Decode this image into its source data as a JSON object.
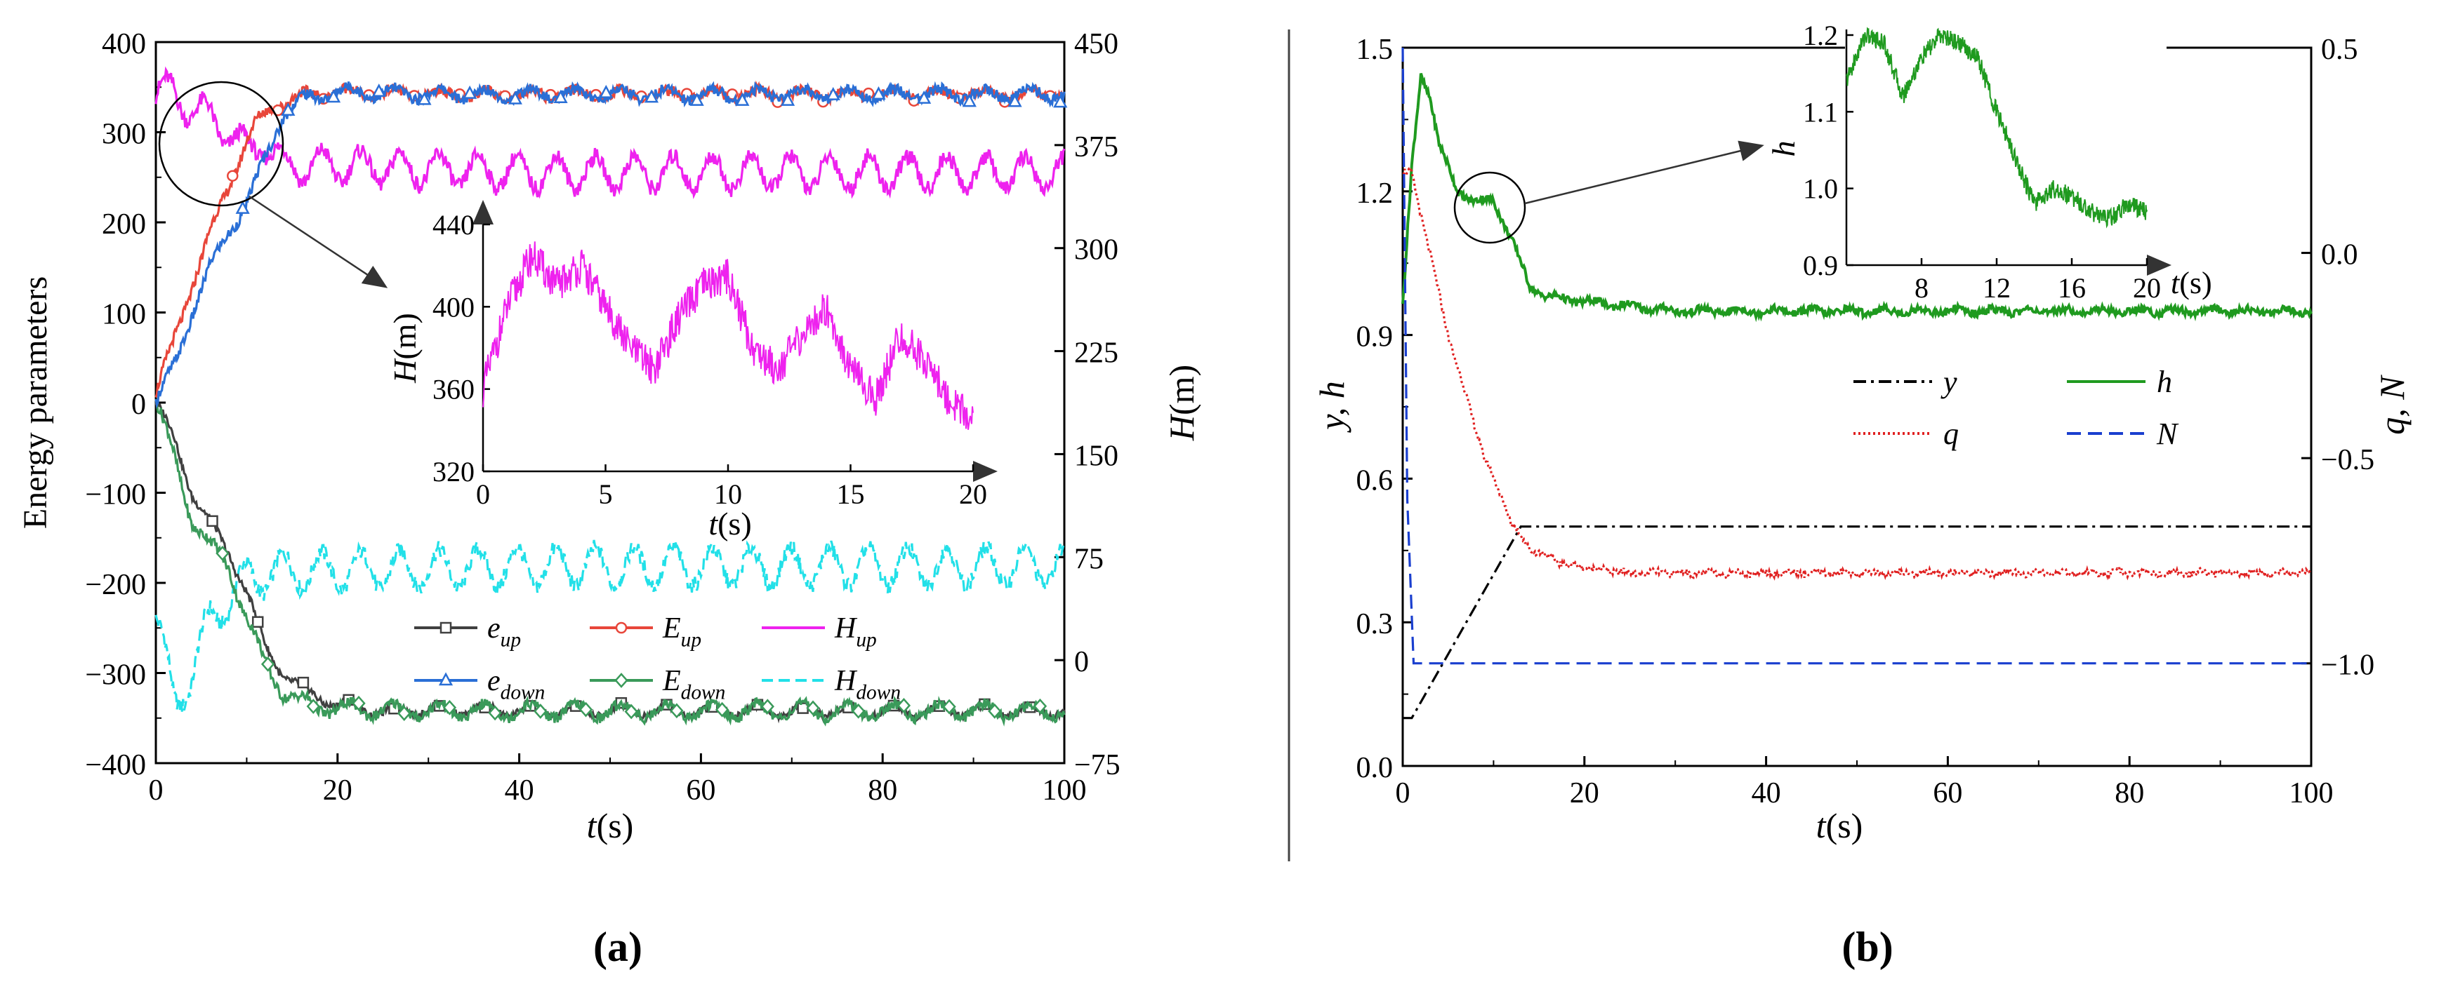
{
  "figure": {
    "panel_a_caption": "a",
    "panel_b_caption": "b"
  },
  "chart_data": [
    {
      "id": "a",
      "type": "line",
      "xlabel": "t(s)",
      "ylabel_left": "Energy parameters",
      "ylabel_right": "H(m)",
      "xlim": [
        0,
        100
      ],
      "ylim_left": [
        -400,
        400
      ],
      "ylim_right": [
        -75,
        450
      ],
      "xticks": [
        0,
        20,
        40,
        60,
        80,
        100
      ],
      "yticks_left": [
        400,
        300,
        200,
        100,
        0,
        -100,
        -200,
        -300,
        -400
      ],
      "yticks_right": [
        450,
        375,
        300,
        225,
        150,
        75,
        0,
        -75
      ],
      "legend": [
        {
          "sym": "e",
          "sub": "up",
          "color": "#404040",
          "marker": "square"
        },
        {
          "sym": "E",
          "sub": "up",
          "color": "#e8463a",
          "marker": "circle"
        },
        {
          "sym": "H",
          "sub": "up",
          "color": "#ee22ee",
          "marker": "none"
        },
        {
          "sym": "e",
          "sub": "down",
          "color": "#2a6fd6",
          "marker": "triangle"
        },
        {
          "sym": "E",
          "sub": "down",
          "color": "#3a9a5a",
          "marker": "diamond"
        },
        {
          "sym": "H",
          "sub": "down",
          "color": "#22e0e8",
          "marker": "dash"
        }
      ],
      "series": [
        {
          "name": "e_up",
          "axis": "left",
          "color": "#404040",
          "points": [
            [
              0,
              0
            ],
            [
              2,
              -40
            ],
            [
              4,
              -100
            ],
            [
              6,
              -135
            ],
            [
              8,
              -165
            ],
            [
              10,
              -210
            ],
            [
              12,
              -270
            ],
            [
              14,
              -300
            ],
            [
              16,
              -318
            ],
            [
              20,
              -335
            ],
            [
              25,
              -343
            ],
            [
              30,
              -340
            ],
            [
              40,
              -342
            ],
            [
              60,
              -342
            ],
            [
              80,
              -342
            ],
            [
              100,
              -342
            ]
          ]
        },
        {
          "name": "E_up",
          "axis": "left",
          "color": "#e8463a",
          "points": [
            [
              0,
              10
            ],
            [
              2,
              70
            ],
            [
              4,
              130
            ],
            [
              6,
              190
            ],
            [
              8,
              240
            ],
            [
              10,
              290
            ],
            [
              11,
              310
            ],
            [
              13,
              330
            ],
            [
              16,
              340
            ],
            [
              20,
              345
            ],
            [
              30,
              342
            ],
            [
              60,
              342
            ],
            [
              80,
              342
            ],
            [
              100,
              342
            ]
          ]
        },
        {
          "name": "e_down",
          "axis": "left",
          "color": "#2a6fd6",
          "points": [
            [
              0,
              0
            ],
            [
              2,
              40
            ],
            [
              4,
              100
            ],
            [
              6,
              150
            ],
            [
              8,
              190
            ],
            [
              10,
              220
            ],
            [
              12,
              270
            ],
            [
              14,
              320
            ],
            [
              16,
              336
            ],
            [
              20,
              345
            ],
            [
              30,
              342
            ],
            [
              60,
              342
            ],
            [
              80,
              342
            ],
            [
              100,
              342
            ]
          ]
        },
        {
          "name": "E_down",
          "axis": "left",
          "color": "#3a9a5a",
          "points": [
            [
              0,
              0
            ],
            [
              2,
              -60
            ],
            [
              4,
              -130
            ],
            [
              6,
              -160
            ],
            [
              8,
              -180
            ],
            [
              10,
              -240
            ],
            [
              12,
              -290
            ],
            [
              14,
              -320
            ],
            [
              16,
              -333
            ],
            [
              20,
              -340
            ],
            [
              30,
              -342
            ],
            [
              60,
              -342
            ],
            [
              80,
              -342
            ],
            [
              100,
              -342
            ]
          ]
        },
        {
          "name": "H_up",
          "axis": "right",
          "color": "#ee22ee",
          "points": [
            [
              0,
              410
            ],
            [
              2,
              415
            ],
            [
              4,
              400
            ],
            [
              6,
              395
            ],
            [
              8,
              385
            ],
            [
              10,
              370
            ],
            [
              12,
              378
            ],
            [
              14,
              360
            ],
            [
              20,
              360
            ],
            [
              40,
              355
            ],
            [
              60,
              355
            ],
            [
              80,
              355
            ],
            [
              100,
              355
            ]
          ]
        },
        {
          "name": "H_down",
          "axis": "right",
          "color": "#22e0e8",
          "points": [
            [
              0,
              30
            ],
            [
              2,
              -30
            ],
            [
              4,
              -10
            ],
            [
              6,
              30
            ],
            [
              8,
              45
            ],
            [
              10,
              60
            ],
            [
              14,
              65
            ],
            [
              20,
              65
            ],
            [
              40,
              68
            ],
            [
              60,
              68
            ],
            [
              80,
              68
            ],
            [
              100,
              68
            ]
          ]
        }
      ],
      "inset": {
        "xlabel": "t(s)",
        "ylabel": "H(m)",
        "xlim": [
          0,
          20
        ],
        "ylim": [
          320,
          440
        ],
        "xticks": [
          0,
          5,
          10,
          15,
          20
        ],
        "yticks": [
          320,
          360,
          400,
          440
        ],
        "series": [
          {
            "name": "H_up_zoom",
            "color": "#ee22ee",
            "points": [
              [
                0,
                360
              ],
              [
                1,
                400
              ],
              [
                2,
                425
              ],
              [
                3,
                410
              ],
              [
                4,
                420
              ],
              [
                5,
                400
              ],
              [
                6,
                380
              ],
              [
                7,
                370
              ],
              [
                8,
                395
              ],
              [
                9,
                410
              ],
              [
                10,
                415
              ],
              [
                11,
                380
              ],
              [
                12,
                370
              ],
              [
                13,
                385
              ],
              [
                14,
                400
              ],
              [
                15,
                370
              ],
              [
                16,
                355
              ],
              [
                17,
                385
              ],
              [
                18,
                375
              ],
              [
                19,
                355
              ],
              [
                20,
                345
              ]
            ]
          }
        ]
      }
    },
    {
      "id": "b",
      "type": "line",
      "xlabel": "t(s)",
      "ylabel_left": "y, h",
      "ylabel_right": "q, N",
      "xlim": [
        0,
        100
      ],
      "ylim_left": [
        0.0,
        1.5
      ],
      "ylim_right": [
        -1.25,
        0.5
      ],
      "xticks": [
        0,
        20,
        40,
        60,
        80,
        100
      ],
      "yticks_left": [
        1.5,
        1.2,
        0.9,
        0.6,
        0.3,
        0.0
      ],
      "yticks_right": [
        0.5,
        0.0,
        -0.5,
        -1.0
      ],
      "ytick_labels_right": [
        "0.5",
        "0.0",
        "−0.5",
        "−1.0"
      ],
      "legend": [
        {
          "sym": "y",
          "color": "#000000",
          "style": "dashdot"
        },
        {
          "sym": "h",
          "color": "#1f9a1f",
          "style": "solid"
        },
        {
          "sym": "q",
          "color": "#e02020",
          "style": "dotted"
        },
        {
          "sym": "N",
          "color": "#1a3fcf",
          "style": "dashed"
        }
      ],
      "series": [
        {
          "name": "y",
          "axis": "left",
          "color": "#000000",
          "points": [
            [
              0,
              0.1
            ],
            [
              1,
              0.1
            ],
            [
              13,
              0.5
            ],
            [
              100,
              0.5
            ]
          ]
        },
        {
          "name": "h",
          "axis": "left",
          "color": "#1f9a1f",
          "points": [
            [
              0,
              0.96
            ],
            [
              1,
              1.25
            ],
            [
              2,
              1.44
            ],
            [
              3,
              1.4
            ],
            [
              4,
              1.3
            ],
            [
              6,
              1.2
            ],
            [
              8,
              1.18
            ],
            [
              10,
              1.18
            ],
            [
              12,
              1.1
            ],
            [
              14,
              1.0
            ],
            [
              16,
              0.98
            ],
            [
              20,
              0.97
            ],
            [
              30,
              0.95
            ],
            [
              50,
              0.95
            ],
            [
              80,
              0.95
            ],
            [
              100,
              0.95
            ]
          ]
        },
        {
          "name": "q",
          "axis": "right",
          "color": "#e02020",
          "points": [
            [
              0,
              0.2
            ],
            [
              1,
              0.19
            ],
            [
              3,
              0.0
            ],
            [
              5,
              -0.2
            ],
            [
              7,
              -0.35
            ],
            [
              9,
              -0.5
            ],
            [
              11,
              -0.6
            ],
            [
              12,
              -0.66
            ],
            [
              14,
              -0.72
            ],
            [
              18,
              -0.76
            ],
            [
              25,
              -0.78
            ],
            [
              40,
              -0.78
            ],
            [
              60,
              -0.78
            ],
            [
              80,
              -0.78
            ],
            [
              100,
              -0.78
            ]
          ]
        },
        {
          "name": "N",
          "axis": "right",
          "color": "#1a3fcf",
          "points": [
            [
              0,
              0.5
            ],
            [
              0.5,
              -0.6
            ],
            [
              1.2,
              -1.0
            ],
            [
              100,
              -1.0
            ]
          ]
        }
      ],
      "inset": {
        "xlabel": "t(s)",
        "ylabel": "h",
        "xlim": [
          4,
          20
        ],
        "ylim": [
          0.9,
          1.2
        ],
        "xticks": [
          8,
          12,
          16,
          20
        ],
        "yticks": [
          0.9,
          1.0,
          1.1,
          1.2
        ],
        "ytick_labels": [
          "0.9",
          "1.0",
          "1.1",
          "1.2"
        ],
        "series": [
          {
            "name": "h_zoom",
            "color": "#1f9a1f",
            "points": [
              [
                4,
                1.14
              ],
              [
                5,
                1.2
              ],
              [
                6,
                1.19
              ],
              [
                7,
                1.12
              ],
              [
                8,
                1.17
              ],
              [
                9,
                1.2
              ],
              [
                10,
                1.19
              ],
              [
                11,
                1.17
              ],
              [
                12,
                1.1
              ],
              [
                13,
                1.04
              ],
              [
                14,
                0.98
              ],
              [
                15,
                1.0
              ],
              [
                16,
                0.99
              ],
              [
                17,
                0.97
              ],
              [
                18,
                0.96
              ],
              [
                19,
                0.98
              ],
              [
                20,
                0.97
              ]
            ]
          }
        ]
      }
    }
  ]
}
